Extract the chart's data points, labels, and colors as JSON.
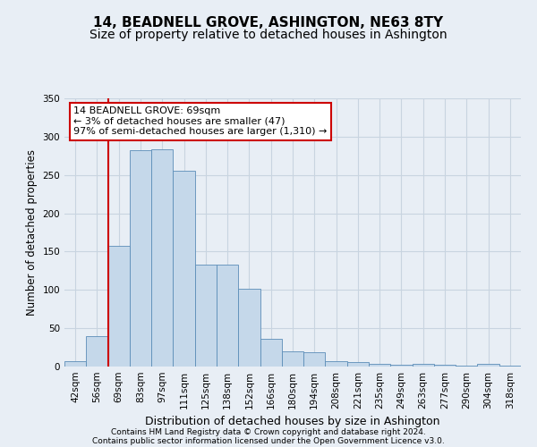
{
  "title": "14, BEADNELL GROVE, ASHINGTON, NE63 8TY",
  "subtitle": "Size of property relative to detached houses in Ashington",
  "xlabel": "Distribution of detached houses by size in Ashington",
  "ylabel": "Number of detached properties",
  "categories": [
    "42sqm",
    "56sqm",
    "69sqm",
    "83sqm",
    "97sqm",
    "111sqm",
    "125sqm",
    "138sqm",
    "152sqm",
    "166sqm",
    "180sqm",
    "194sqm",
    "208sqm",
    "221sqm",
    "235sqm",
    "249sqm",
    "263sqm",
    "277sqm",
    "290sqm",
    "304sqm",
    "318sqm"
  ],
  "values": [
    7,
    40,
    158,
    282,
    283,
    255,
    133,
    133,
    102,
    36,
    20,
    19,
    7,
    6,
    4,
    2,
    3,
    2,
    1,
    3,
    1
  ],
  "bar_color": "#c5d8ea",
  "bar_edge_color": "#5b8db8",
  "grid_color": "#c8d4e0",
  "background_color": "#e8eef5",
  "vline_color": "#cc0000",
  "vline_idx": 2,
  "annotation_text": "14 BEADNELL GROVE: 69sqm\n← 3% of detached houses are smaller (47)\n97% of semi-detached houses are larger (1,310) →",
  "annotation_box_facecolor": "#ffffff",
  "annotation_box_edgecolor": "#cc0000",
  "ylim": [
    0,
    350
  ],
  "yticks": [
    0,
    50,
    100,
    150,
    200,
    250,
    300,
    350
  ],
  "footer1": "Contains HM Land Registry data © Crown copyright and database right 2024.",
  "footer2": "Contains public sector information licensed under the Open Government Licence v3.0.",
  "title_fontsize": 11,
  "subtitle_fontsize": 10,
  "xlabel_fontsize": 9,
  "ylabel_fontsize": 8.5,
  "tick_fontsize": 7.5,
  "annotation_fontsize": 8,
  "footer_fontsize": 6.5
}
